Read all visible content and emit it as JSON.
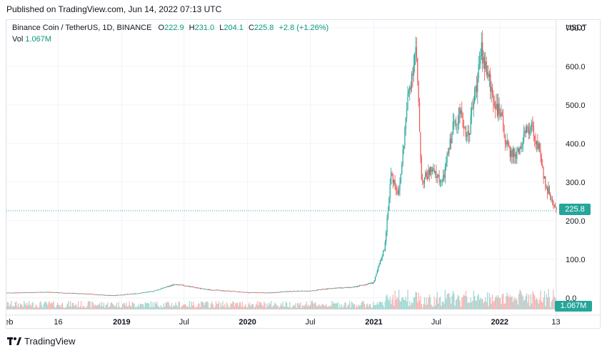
{
  "published": "Published on TradingView.com, Jun 14, 2022 07:13 UTC",
  "legend": {
    "symbol": "Binance Coin / TetherUS, 1D, BINANCE",
    "o_label": "O",
    "o_value": "222.9",
    "h_label": "H",
    "h_value": "231.0",
    "l_label": "L",
    "l_value": "204.1",
    "c_label": "C",
    "c_value": "225.8",
    "change": "+2.8 (+1.26%)",
    "vol_label": "Vol",
    "vol_value": "1.067M"
  },
  "currency": "USDT",
  "last_price_label": "225.8",
  "last_volume_label": "1.067M",
  "footer": {
    "brand": "TradingView",
    "logo_icon": "tradingview-logo-icon"
  },
  "colors": {
    "up": "#26a69a",
    "down": "#ef5350",
    "grid": "#f0f3fa",
    "price_line": "#26a69a"
  },
  "chart_data": {
    "type": "candlestick",
    "title": "Binance Coin / TetherUS, 1D, BINANCE",
    "ylim": [
      -30,
      720
    ],
    "y_ticks": [
      "700.0",
      "600.0",
      "500.0",
      "400.0",
      "300.0",
      "200.0",
      "100.0",
      "0.0"
    ],
    "y_tick_values": [
      700,
      600,
      500,
      400,
      300,
      200,
      100,
      0
    ],
    "x_ticks": [
      {
        "label": "Feb",
        "date": "2018-02-01",
        "bold": false
      },
      {
        "label": "16",
        "date": "2018-07-01",
        "bold": false
      },
      {
        "label": "2019",
        "date": "2019-01-01",
        "bold": true
      },
      {
        "label": "Jul",
        "date": "2019-07-01",
        "bold": false
      },
      {
        "label": "2020",
        "date": "2020-01-01",
        "bold": true
      },
      {
        "label": "Jul",
        "date": "2020-07-01",
        "bold": false
      },
      {
        "label": "2021",
        "date": "2021-01-01",
        "bold": true
      },
      {
        "label": "Jul",
        "date": "2021-07-01",
        "bold": false
      },
      {
        "label": "2022",
        "date": "2022-01-01",
        "bold": true
      },
      {
        "label": "13",
        "date": "2022-06-13",
        "bold": false
      }
    ],
    "x_range": [
      "2018-02-01",
      "2022-06-14"
    ],
    "last_price": 225.8,
    "series": [
      {
        "name": "Close",
        "x": [
          "2018-02-01",
          "2018-04-01",
          "2018-06-01",
          "2018-08-01",
          "2018-10-01",
          "2018-12-01",
          "2019-02-01",
          "2019-04-01",
          "2019-06-01",
          "2019-07-01",
          "2019-09-01",
          "2019-11-01",
          "2020-01-01",
          "2020-03-01",
          "2020-05-01",
          "2020-07-01",
          "2020-09-01",
          "2020-11-01",
          "2021-01-01",
          "2021-02-01",
          "2021-02-20",
          "2021-03-15",
          "2021-04-10",
          "2021-05-03",
          "2021-05-20",
          "2021-06-15",
          "2021-07-20",
          "2021-08-20",
          "2021-09-05",
          "2021-10-01",
          "2021-11-10",
          "2021-12-10",
          "2022-01-10",
          "2022-01-25",
          "2022-02-20",
          "2022-03-30",
          "2022-04-20",
          "2022-05-12",
          "2022-06-13"
        ],
        "values": [
          13,
          14,
          15,
          12,
          10,
          6,
          10,
          17,
          34,
          32,
          22,
          18,
          14,
          13,
          17,
          18,
          25,
          27,
          40,
          130,
          320,
          270,
          520,
          650,
          300,
          330,
          300,
          450,
          480,
          420,
          640,
          530,
          450,
          380,
          370,
          450,
          400,
          300,
          225.8
        ]
      }
    ],
    "volume": {
      "name": "Vol",
      "last": "1.067M"
    }
  }
}
